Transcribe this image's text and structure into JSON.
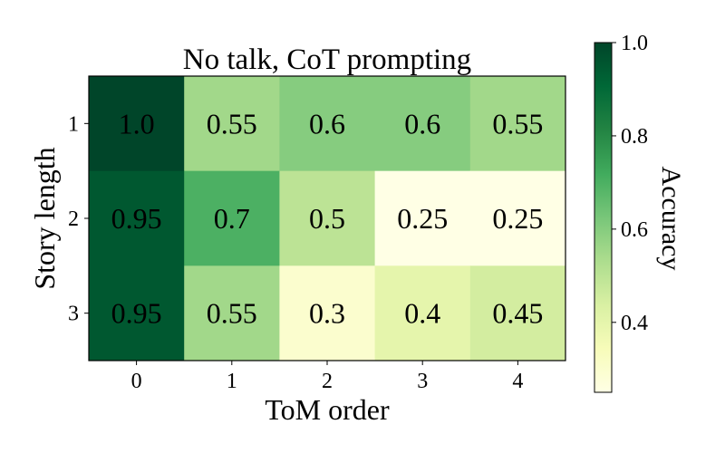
{
  "chart_data": {
    "type": "heatmap",
    "title": "No talk, CoT prompting",
    "xlabel": "ToM order",
    "ylabel": "Story length",
    "x_categories": [
      "0",
      "1",
      "2",
      "3",
      "4"
    ],
    "y_categories": [
      "1",
      "2",
      "3"
    ],
    "values": [
      [
        1.0,
        0.55,
        0.6,
        0.6,
        0.55
      ],
      [
        0.95,
        0.7,
        0.5,
        0.25,
        0.25
      ],
      [
        0.95,
        0.55,
        0.3,
        0.4,
        0.45
      ]
    ],
    "cell_labels": [
      [
        "1.0",
        "0.55",
        "0.6",
        "0.6",
        "0.55"
      ],
      [
        "0.95",
        "0.7",
        "0.5",
        "0.25",
        "0.25"
      ],
      [
        "0.95",
        "0.55",
        "0.3",
        "0.4",
        "0.45"
      ]
    ],
    "colorbar": {
      "label": "Accuracy",
      "vmin": 0.25,
      "vmax": 1.0,
      "ticks": [
        {
          "value": 0.4,
          "label": "0.4"
        },
        {
          "value": 0.6,
          "label": "0.6"
        },
        {
          "value": 0.8,
          "label": "0.8"
        },
        {
          "value": 1.0,
          "label": "1.0"
        }
      ],
      "colormap": "YlGn",
      "stops": [
        "#ffffe5",
        "#f7fcb9",
        "#d9f0a3",
        "#addd8e",
        "#78c679",
        "#41ab5d",
        "#238443",
        "#006837",
        "#004529"
      ]
    }
  }
}
